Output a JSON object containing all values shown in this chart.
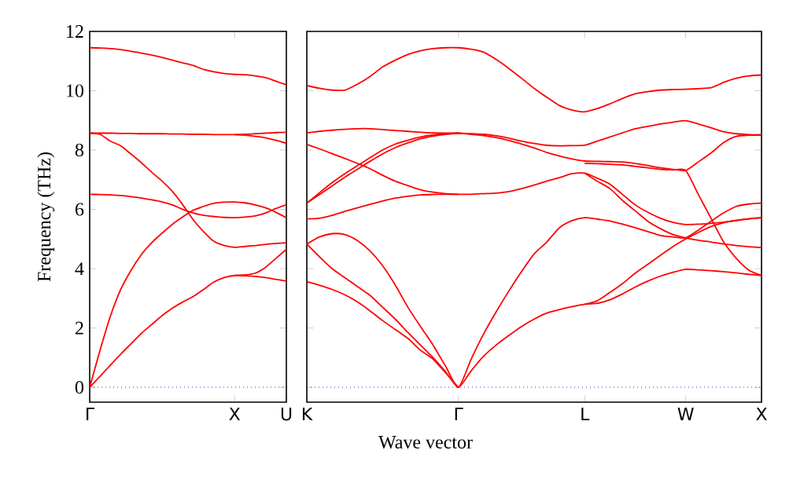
{
  "chart_data": [
    {
      "type": "line",
      "ylabel": "Frequency (THz)",
      "ylim": [
        -0.5,
        12
      ],
      "categories": [
        "Γ",
        null,
        null,
        null,
        null,
        null,
        null,
        null,
        null,
        null,
        null,
        null,
        null,
        null,
        "X",
        null,
        null,
        null,
        null,
        "U"
      ],
      "yticks": [
        0,
        2,
        4,
        6,
        8,
        10,
        12
      ],
      "ref_lines": [
        {
          "axis": "y",
          "value": 0,
          "color": "#0000ff",
          "line_style": "dotted"
        }
      ],
      "series": [
        {
          "color": "#ff0000",
          "values": [
            11.45,
            11.44,
            11.42,
            11.39,
            11.33,
            11.27,
            11.2,
            11.12,
            11.03,
            10.94,
            10.85,
            10.72,
            10.64,
            10.58,
            10.55,
            10.54,
            10.5,
            10.44,
            10.32,
            10.2
          ]
        },
        {
          "color": "#ff0000",
          "values": [
            8.57,
            8.57,
            8.57,
            8.56,
            8.56,
            8.55,
            8.55,
            8.55,
            8.54,
            8.54,
            8.53,
            8.53,
            8.52,
            8.52,
            8.52,
            8.53,
            8.55,
            8.57,
            8.59,
            8.6
          ]
        },
        {
          "color": "#ff0000",
          "values": [
            null,
            null,
            null,
            null,
            null,
            null,
            null,
            null,
            null,
            null,
            null,
            null,
            null,
            null,
            8.52,
            8.5,
            8.46,
            8.41,
            8.33,
            8.23
          ]
        },
        {
          "color": "#ff0000",
          "values": [
            8.57,
            8.53,
            8.3,
            8.14,
            7.86,
            7.57,
            7.25,
            6.95,
            6.6,
            6.15,
            5.65,
            5.25,
            4.92,
            4.78,
            4.72,
            4.75,
            4.78,
            4.82,
            4.85,
            4.87
          ]
        },
        {
          "color": "#ff0000",
          "values": [
            6.51,
            6.5,
            6.49,
            6.47,
            6.43,
            6.38,
            6.32,
            6.25,
            6.15,
            6.0,
            5.88,
            5.8,
            5.76,
            5.73,
            5.72,
            5.74,
            5.78,
            5.88,
            6.03,
            6.16
          ]
        },
        {
          "color": "#ff0000",
          "values": [
            0,
            1.25,
            2.4,
            3.3,
            3.95,
            4.48,
            4.88,
            5.2,
            5.5,
            5.75,
            5.97,
            6.1,
            6.2,
            6.24,
            6.25,
            6.22,
            6.15,
            6.05,
            5.9,
            5.72
          ]
        },
        {
          "color": "#ff0000",
          "values": [
            0,
            0.37,
            0.75,
            1.12,
            1.47,
            1.82,
            2.12,
            2.42,
            2.67,
            2.88,
            3.06,
            3.3,
            3.55,
            3.7,
            3.77,
            3.76,
            3.74,
            3.7,
            3.64,
            3.58
          ]
        },
        {
          "color": "#ff0000",
          "values": [
            null,
            null,
            null,
            null,
            null,
            null,
            null,
            null,
            null,
            null,
            null,
            null,
            null,
            null,
            3.77,
            3.79,
            3.85,
            4.05,
            4.35,
            4.65
          ]
        }
      ]
    },
    {
      "type": "line",
      "xlabel": "Wave vector",
      "ylim": [
        -0.5,
        12
      ],
      "tick_labels": "x",
      "categories": [
        "K",
        null,
        null,
        null,
        null,
        null,
        null,
        null,
        null,
        null,
        null,
        null,
        "Γ",
        null,
        null,
        null,
        null,
        null,
        null,
        null,
        null,
        null,
        "L",
        null,
        null,
        null,
        null,
        null,
        null,
        null,
        "W",
        null,
        null,
        null,
        null,
        null,
        "X"
      ],
      "yticks": [
        0,
        2,
        4,
        6,
        8,
        10,
        12
      ],
      "ref_lines": [
        {
          "axis": "y",
          "value": 0,
          "color": "#0000ff",
          "line_style": "dotted"
        }
      ],
      "series": [
        {
          "color": "#ff0000",
          "values": [
            10.18,
            10.08,
            10.02,
            10.02,
            10.22,
            10.48,
            10.8,
            11.03,
            11.22,
            11.35,
            11.42,
            11.45,
            11.45,
            11.4,
            11.3,
            11.05,
            10.75,
            10.42,
            10.08,
            9.78,
            9.5,
            9.35,
            9.29,
            9.4,
            9.56,
            9.74,
            9.9,
            9.97,
            10.02,
            10.04,
            10.05,
            10.07,
            10.1,
            10.28,
            10.42,
            10.5,
            10.53
          ]
        },
        {
          "color": "#ff0000",
          "values": [
            8.58,
            8.63,
            8.67,
            8.7,
            8.72,
            8.72,
            8.69,
            8.66,
            8.63,
            8.6,
            8.58,
            8.57,
            8.57,
            8.55,
            8.53,
            8.48,
            8.4,
            8.3,
            8.22,
            8.16,
            8.14,
            8.15,
            8.16,
            8.3,
            8.44,
            8.58,
            8.72,
            8.8,
            8.88,
            8.94,
            8.99,
            8.88,
            8.75,
            8.62,
            8.55,
            8.52,
            8.51
          ]
        },
        {
          "color": "#ff0000",
          "values": [
            6.21,
            6.56,
            6.9,
            7.2,
            7.47,
            7.74,
            8.0,
            8.2,
            8.33,
            8.44,
            8.51,
            8.55,
            8.57,
            8.53,
            8.49,
            8.42,
            8.32,
            8.2,
            8.07,
            7.92,
            7.8,
            7.7,
            7.63,
            7.62,
            7.61,
            7.6,
            7.55,
            7.48,
            7.4,
            7.35,
            7.31,
            7.6,
            7.9,
            8.25,
            8.46,
            8.5,
            8.51
          ]
        },
        {
          "color": "#ff0000",
          "values": [
            6.21,
            6.5,
            6.79,
            7.08,
            7.35,
            7.62,
            7.87,
            8.08,
            8.24,
            8.38,
            8.47,
            8.53,
            8.57,
            null,
            null,
            null,
            null,
            null,
            null,
            null,
            null,
            null,
            null,
            null,
            null,
            null,
            null,
            null,
            null,
            null,
            null,
            null,
            null,
            null,
            null,
            null,
            null
          ]
        },
        {
          "color": "#ff0000",
          "values": [
            8.19,
            8.04,
            7.88,
            7.72,
            7.55,
            7.37,
            7.15,
            6.95,
            6.8,
            6.66,
            6.58,
            6.53,
            6.51,
            6.51,
            6.53,
            6.55,
            6.6,
            6.7,
            6.82,
            6.95,
            7.07,
            7.2,
            7.22,
            7.05,
            6.85,
            6.5,
            6.15,
            5.9,
            5.7,
            5.56,
            5.49,
            5.5,
            5.53,
            5.57,
            5.62,
            5.68,
            5.72
          ]
        },
        {
          "color": "#ff0000",
          "values": [
            5.68,
            5.7,
            5.8,
            5.93,
            6.05,
            6.17,
            6.28,
            6.38,
            6.44,
            6.49,
            6.5,
            6.51,
            6.51,
            null,
            null,
            null,
            null,
            null,
            null,
            null,
            null,
            null,
            null,
            null,
            null,
            null,
            null,
            null,
            null,
            null,
            null,
            null,
            null,
            null,
            null,
            null,
            null
          ]
        },
        {
          "color": "#ff0000",
          "values": [
            4.83,
            5.07,
            5.18,
            5.15,
            4.95,
            4.6,
            4.1,
            3.45,
            2.7,
            2.05,
            1.42,
            0.7,
            0,
            0.94,
            1.8,
            2.55,
            3.25,
            3.9,
            4.5,
            4.9,
            5.38,
            5.62,
            5.72,
            5.67,
            5.61,
            5.5,
            5.38,
            5.25,
            5.12,
            5.07,
            5.04,
            5.3,
            5.6,
            5.88,
            6.1,
            6.18,
            6.21
          ]
        },
        {
          "color": "#ff0000",
          "values": [
            4.83,
            4.4,
            4.0,
            3.7,
            3.4,
            3.1,
            2.7,
            2.3,
            1.85,
            1.42,
            1.0,
            0.52,
            0,
            0.55,
            1.05,
            1.43,
            1.75,
            2.05,
            2.3,
            2.5,
            2.62,
            2.72,
            2.8,
            2.83,
            2.95,
            3.15,
            3.38,
            3.58,
            3.75,
            3.88,
            3.98,
            3.96,
            3.93,
            3.9,
            3.86,
            3.81,
            3.77
          ]
        },
        {
          "color": "#ff0000",
          "values": [
            3.56,
            3.44,
            3.3,
            3.12,
            2.88,
            2.58,
            2.25,
            1.95,
            1.65,
            1.25,
            0.95,
            0.48,
            0,
            null,
            null,
            null,
            null,
            null,
            null,
            null,
            null,
            null,
            null,
            null,
            null,
            null,
            null,
            null,
            null,
            null,
            null,
            null,
            null,
            null,
            null,
            null,
            null
          ]
        },
        {
          "color": "#ff0000",
          "values": [
            null,
            null,
            null,
            null,
            null,
            null,
            null,
            null,
            null,
            null,
            null,
            null,
            null,
            null,
            null,
            null,
            null,
            null,
            null,
            null,
            null,
            null,
            7.55,
            7.54,
            7.52,
            7.5,
            7.45,
            7.4,
            7.35,
            7.33,
            7.31,
            6.5,
            5.7,
            4.9,
            4.35,
            3.95,
            3.77
          ]
        },
        {
          "color": "#ff0000",
          "values": [
            null,
            null,
            null,
            null,
            null,
            null,
            null,
            null,
            null,
            null,
            null,
            null,
            null,
            null,
            null,
            null,
            null,
            null,
            null,
            null,
            null,
            null,
            7.22,
            6.95,
            6.7,
            6.3,
            5.95,
            5.6,
            5.35,
            5.15,
            5.04,
            4.96,
            4.9,
            4.83,
            4.78,
            4.74,
            4.71
          ]
        },
        {
          "color": "#ff0000",
          "values": [
            null,
            null,
            null,
            null,
            null,
            null,
            null,
            null,
            null,
            null,
            null,
            null,
            null,
            null,
            null,
            null,
            null,
            null,
            null,
            null,
            null,
            null,
            2.8,
            2.92,
            3.2,
            3.5,
            3.85,
            4.15,
            4.45,
            4.75,
            5.0,
            5.22,
            5.42,
            5.55,
            5.63,
            5.68,
            5.72
          ]
        }
      ]
    }
  ]
}
